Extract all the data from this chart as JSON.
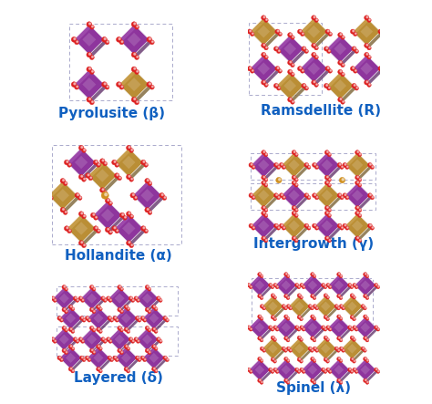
{
  "background_color": "#ffffff",
  "panels": [
    {
      "label": "Pyrolusite (β)",
      "row": 0,
      "col": 0
    },
    {
      "label": "Ramsdellite (R)",
      "row": 0,
      "col": 1
    },
    {
      "label": "Hollandite (α)",
      "row": 1,
      "col": 0
    },
    {
      "label": "Intergrowth (γ)",
      "row": 1,
      "col": 1
    },
    {
      "label": "Layered (δ)",
      "row": 2,
      "col": 0
    },
    {
      "label": "Spinel (λ)",
      "row": 2,
      "col": 1
    }
  ],
  "label_color": "#1060c0",
  "label_fontsize": 11,
  "figsize": [
    4.74,
    4.43
  ],
  "dpi": 100,
  "purple": "#9030a0",
  "gold": "#c09030",
  "red": "#dd2020",
  "pink": "#e070c0",
  "orange": "#d09020",
  "dash_color": "#aaaacc"
}
